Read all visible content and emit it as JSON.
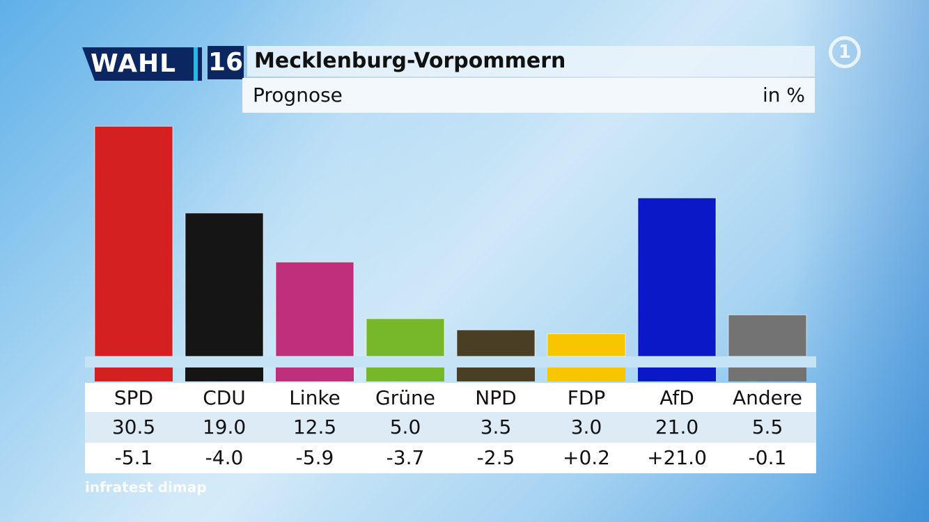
{
  "header": {
    "logo_text": "WAHL",
    "logo_number": "16",
    "title": "Mecklenburg-Vorpommern",
    "subtitle": "Prognose",
    "unit": "in %",
    "channel_logo": "1"
  },
  "source": "infratest dimap",
  "chart_data": {
    "type": "bar",
    "title": "Mecklenburg-Vorpommern",
    "subtitle": "Prognose",
    "unit": "in %",
    "categories": [
      "SPD",
      "CDU",
      "Linke",
      "Grüne",
      "NPD",
      "FDP",
      "AfD",
      "Andere"
    ],
    "values": [
      30.5,
      19.0,
      12.5,
      5.0,
      3.5,
      3.0,
      21.0,
      5.5
    ],
    "value_labels": [
      "30.5",
      "19.0",
      "12.5",
      "5.0",
      "3.5",
      "3.0",
      "21.0",
      "5.5"
    ],
    "change_labels": [
      "-5.1",
      "-4.0",
      "-5.9",
      "-3.7",
      "-2.5",
      "+0.2",
      "+21.0",
      "-0.1"
    ],
    "colors": [
      "#d42020",
      "#151515",
      "#c0307a",
      "#76b82a",
      "#4a3f25",
      "#f7c600",
      "#0a18c8",
      "#737373"
    ],
    "ylim": [
      0,
      31
    ],
    "grid": false,
    "legend": "none"
  }
}
